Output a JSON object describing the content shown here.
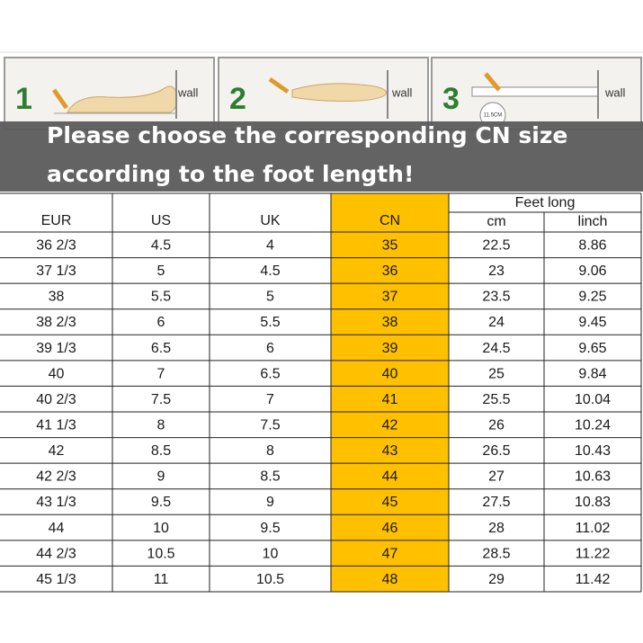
{
  "panels": [
    {
      "step": "1",
      "label": "wall"
    },
    {
      "step": "2",
      "label": "wall"
    },
    {
      "step": "3",
      "label": "wall",
      "ruler": "11.5CM"
    }
  ],
  "banner": {
    "lines": [
      "Please choose the corresponding CN size",
      "according to the foot length!"
    ]
  },
  "table": {
    "headers": [
      "EUR",
      "US",
      "UK",
      "CN"
    ],
    "group_header": "Feet long",
    "sub_headers": [
      "cm",
      "linch"
    ],
    "rows": [
      [
        "36 2/3",
        "4.5",
        "4",
        "35",
        "22.5",
        "8.86"
      ],
      [
        "37 1/3",
        "5",
        "4.5",
        "36",
        "23",
        "9.06"
      ],
      [
        "38",
        "5.5",
        "5",
        "37",
        "23.5",
        "9.25"
      ],
      [
        "38 2/3",
        "6",
        "5.5",
        "38",
        "24",
        "9.45"
      ],
      [
        "39 1/3",
        "6.5",
        "6",
        "39",
        "24.5",
        "9.65"
      ],
      [
        "40",
        "7",
        "6.5",
        "40",
        "25",
        "9.84"
      ],
      [
        "40 2/3",
        "7.5",
        "7",
        "41",
        "25.5",
        "10.04"
      ],
      [
        "41 1/3",
        "8",
        "7.5",
        "42",
        "26",
        "10.24"
      ],
      [
        "42",
        "8.5",
        "8",
        "43",
        "26.5",
        "10.43"
      ],
      [
        "42 2/3",
        "9",
        "8.5",
        "44",
        "27",
        "10.63"
      ],
      [
        "43 1/3",
        "9.5",
        "9",
        "45",
        "27.5",
        "10.83"
      ],
      [
        "44",
        "10",
        "9.5",
        "46",
        "28",
        "11.02"
      ],
      [
        "44 2/3",
        "10.5",
        "10",
        "47",
        "28.5",
        "11.22"
      ],
      [
        "45 1/3",
        "11",
        "10.5",
        "48",
        "29",
        "11.42"
      ]
    ]
  }
}
